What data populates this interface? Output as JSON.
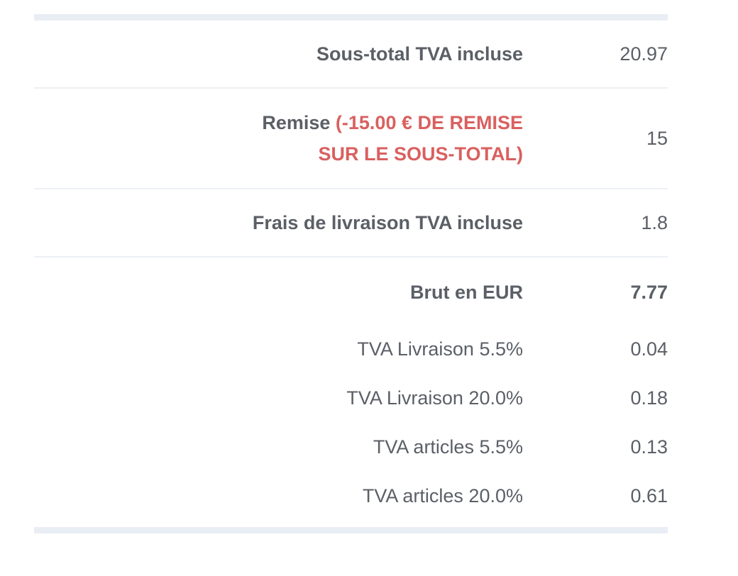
{
  "summary": {
    "subtotal": {
      "label": "Sous-total TVA incluse",
      "value": "20.97"
    },
    "discount": {
      "label": "Remise",
      "note_line1": "(-15.00 € DE REMISE",
      "note_line2": "SUR LE SOUS-TOTAL)",
      "value": "15"
    },
    "shipping": {
      "label": "Frais de livraison TVA incluse",
      "value": "1.8"
    },
    "gross": {
      "label": "Brut en EUR",
      "value": "7.77"
    },
    "taxes": [
      {
        "label": "TVA Livraison 5.5%",
        "value": "0.04"
      },
      {
        "label": "TVA Livraison 20.0%",
        "value": "0.18"
      },
      {
        "label": "TVA articles 5.5%",
        "value": "0.13"
      },
      {
        "label": "TVA articles 20.0%",
        "value": "0.61"
      }
    ]
  }
}
